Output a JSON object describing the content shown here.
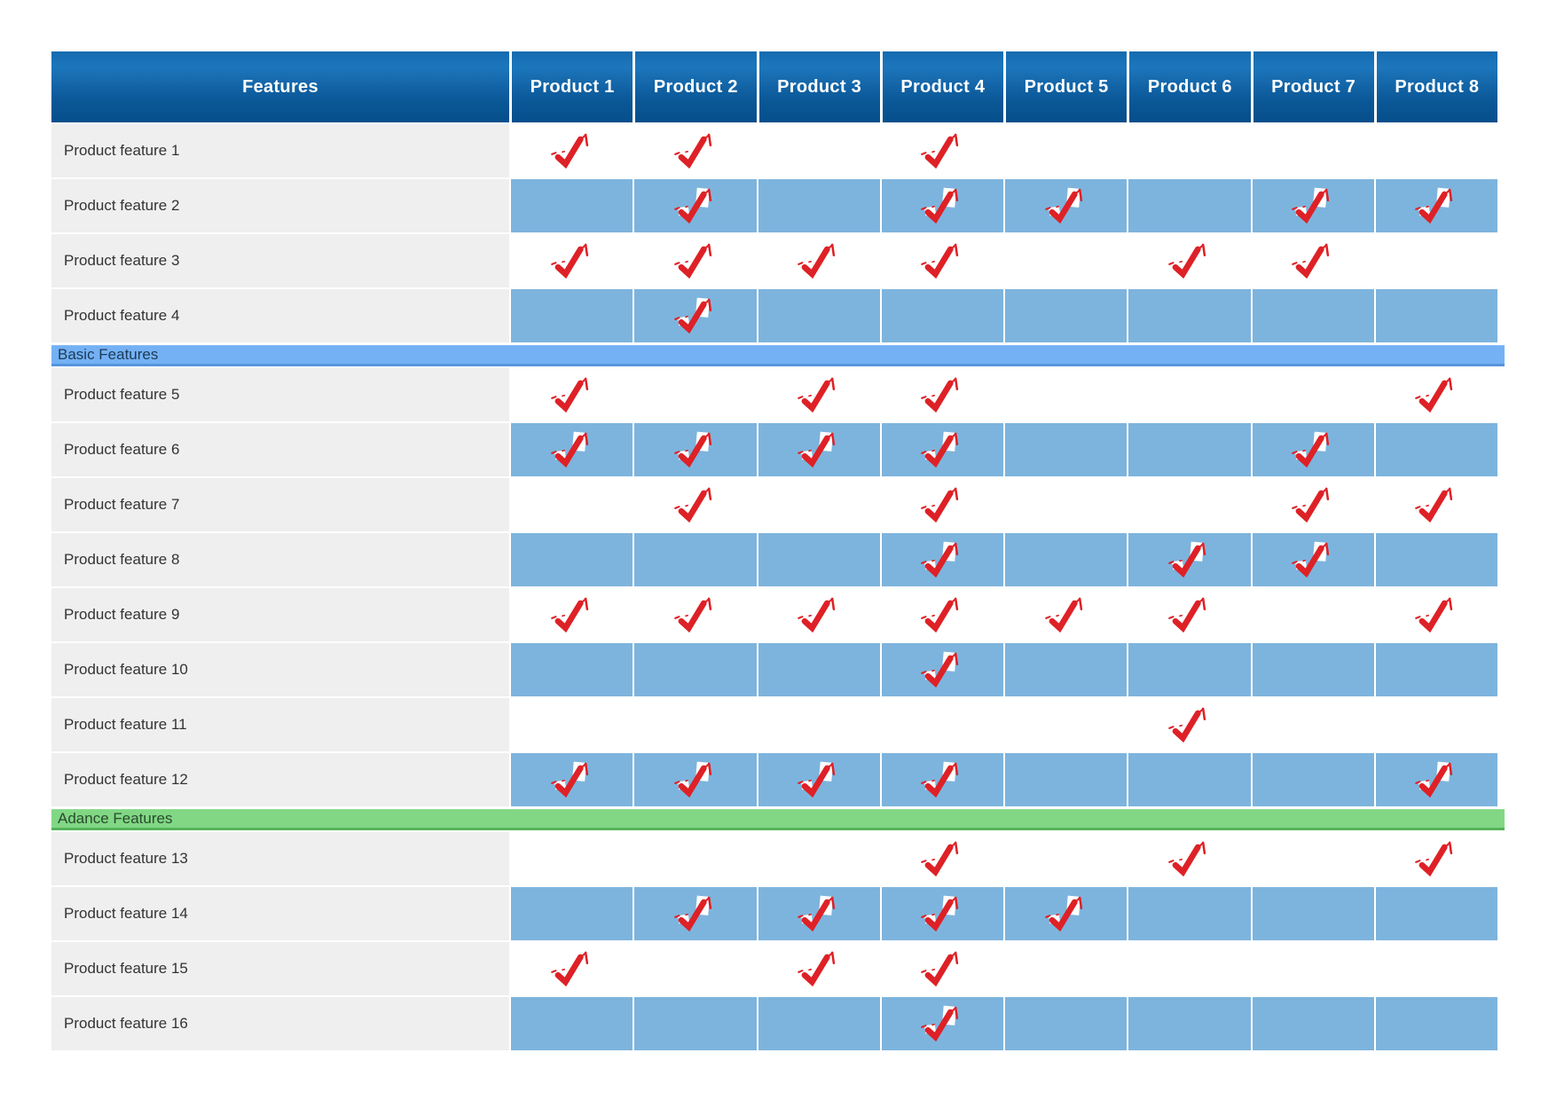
{
  "chart_data": {
    "type": "table",
    "columns": [
      "Features",
      "Product 1",
      "Product 2",
      "Product 3",
      "Product 4",
      "Product 5",
      "Product 6",
      "Product 7",
      "Product 8"
    ],
    "check_symbol": "red-check-icon",
    "rows": [
      {
        "type": "feature",
        "label": "Product feature 1",
        "checks": [
          1,
          1,
          0,
          1,
          0,
          0,
          0,
          0
        ]
      },
      {
        "type": "feature",
        "label": "Product feature 2",
        "checks": [
          0,
          1,
          0,
          1,
          1,
          0,
          1,
          1
        ]
      },
      {
        "type": "feature",
        "label": "Product feature 3",
        "checks": [
          1,
          1,
          1,
          1,
          0,
          1,
          1,
          0
        ]
      },
      {
        "type": "feature",
        "label": "Product feature 4",
        "checks": [
          0,
          1,
          0,
          0,
          0,
          0,
          0,
          0
        ]
      },
      {
        "type": "section",
        "label": "Basic Features",
        "style": "basic"
      },
      {
        "type": "feature",
        "label": "Product feature 5",
        "checks": [
          1,
          0,
          1,
          1,
          0,
          0,
          0,
          1
        ]
      },
      {
        "type": "feature",
        "label": "Product feature 6",
        "checks": [
          1,
          1,
          1,
          1,
          0,
          0,
          1,
          0
        ]
      },
      {
        "type": "feature",
        "label": "Product feature 7",
        "checks": [
          0,
          1,
          0,
          1,
          0,
          0,
          1,
          1
        ]
      },
      {
        "type": "feature",
        "label": "Product feature 8",
        "checks": [
          0,
          0,
          0,
          1,
          0,
          1,
          1,
          0
        ]
      },
      {
        "type": "feature",
        "label": "Product feature 9",
        "checks": [
          1,
          1,
          1,
          1,
          1,
          1,
          0,
          1
        ]
      },
      {
        "type": "feature",
        "label": "Product feature 10",
        "checks": [
          0,
          0,
          0,
          1,
          0,
          0,
          0,
          0
        ]
      },
      {
        "type": "feature",
        "label": "Product feature 11",
        "checks": [
          0,
          0,
          0,
          0,
          0,
          1,
          0,
          0
        ]
      },
      {
        "type": "feature",
        "label": "Product feature 12",
        "checks": [
          1,
          1,
          1,
          1,
          0,
          0,
          0,
          1
        ]
      },
      {
        "type": "section",
        "label": "Adance Features",
        "style": "advance"
      },
      {
        "type": "feature",
        "label": "Product feature 13",
        "checks": [
          0,
          0,
          0,
          1,
          0,
          1,
          0,
          1
        ]
      },
      {
        "type": "feature",
        "label": "Product feature 14",
        "checks": [
          0,
          1,
          1,
          1,
          1,
          0,
          0,
          0
        ]
      },
      {
        "type": "feature",
        "label": "Product feature 15",
        "checks": [
          1,
          0,
          1,
          1,
          0,
          0,
          0,
          0
        ]
      },
      {
        "type": "feature",
        "label": "Product feature 16",
        "checks": [
          0,
          0,
          0,
          1,
          0,
          0,
          0,
          0
        ]
      }
    ],
    "colors": {
      "header_gradient_top": "#1d76bc",
      "header_gradient_bottom": "#064e8b",
      "blue_row": "#7db4dd",
      "label_column": "#efefef",
      "basic_band": "#74b1f4",
      "advance_band": "#81d784",
      "check_red": "#de2126"
    }
  }
}
